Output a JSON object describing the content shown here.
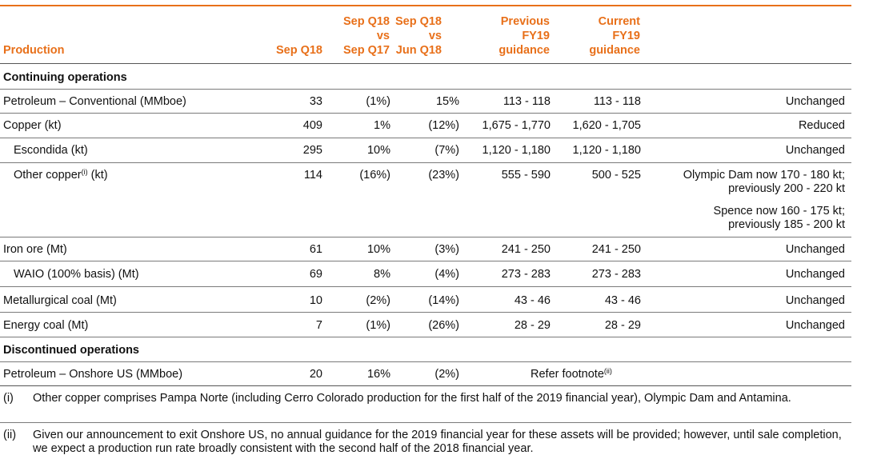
{
  "colors": {
    "accent": "#e8701a",
    "text": "#111111"
  },
  "header": {
    "production": "Production",
    "sep_q18": "Sep Q18",
    "vs_sep_q17": [
      "Sep Q18",
      "vs",
      "Sep Q17"
    ],
    "vs_jun_q18": [
      "Sep Q18",
      "vs",
      "Jun Q18"
    ],
    "previous_guidance": [
      "Previous",
      "FY19",
      "guidance"
    ],
    "current_guidance": [
      "Current",
      "FY19",
      "guidance"
    ]
  },
  "sections": {
    "continuing": "Continuing operations",
    "discontinued": "Discontinued operations"
  },
  "rows": [
    {
      "name": "Petroleum – Conventional (MMboe)",
      "sep_q18": "33",
      "vs_q17": "(1%)",
      "vs_q18": "15%",
      "prev": "113 - 118",
      "curr": "113 - 118",
      "note": "Unchanged"
    },
    {
      "name": "Copper (kt)",
      "sep_q18": "409",
      "vs_q17": "1%",
      "vs_q18": "(12%)",
      "prev": "1,675 - 1,770",
      "curr": "1,620 - 1,705",
      "note": "Reduced"
    },
    {
      "name": "Escondida (kt)",
      "sep_q18": "295",
      "vs_q17": "10%",
      "vs_q18": "(7%)",
      "prev": "1,120 - 1,180",
      "curr": "1,120 - 1,180",
      "note": "Unchanged"
    },
    {
      "name": "Other copper",
      "name_sup": "(i)",
      "name_suffix": " (kt)",
      "sep_q18": "114",
      "vs_q17": "(16%)",
      "vs_q18": "(23%)",
      "prev": "555 - 590",
      "curr": "500 - 525",
      "note_lines": [
        "Olympic Dam now 170 - 180 kt;",
        "previously 200 - 220 kt",
        "Spence now 160 - 175 kt;",
        "previously 185 - 200 kt"
      ]
    },
    {
      "name": "Iron ore (Mt)",
      "sep_q18": "61",
      "vs_q17": "10%",
      "vs_q18": "(3%)",
      "prev": "241 - 250",
      "curr": "241 - 250",
      "note": "Unchanged"
    },
    {
      "name": "WAIO (100% basis) (Mt)",
      "sep_q18": "69",
      "vs_q17": "8%",
      "vs_q18": "(4%)",
      "prev": "273 - 283",
      "curr": "273 - 283",
      "note": "Unchanged"
    },
    {
      "name": "Metallurgical coal (Mt)",
      "sep_q18": "10",
      "vs_q17": "(2%)",
      "vs_q18": "(14%)",
      "prev": "43 - 46",
      "curr": "43 - 46",
      "note": "Unchanged"
    },
    {
      "name": "Energy coal (Mt)",
      "sep_q18": "7",
      "vs_q17": "(1%)",
      "vs_q18": "(26%)",
      "prev": "28 - 29",
      "curr": "28 - 29",
      "note": "Unchanged"
    },
    {
      "name": "Petroleum – Onshore US (MMboe)",
      "sep_q18": "20",
      "vs_q17": "16%",
      "vs_q18": "(2%)",
      "refer": "Refer footnote",
      "refer_sup": "(ii)"
    }
  ],
  "footnotes": [
    {
      "mark": "(i)",
      "text": "Other copper comprises Pampa Norte (including Cerro Colorado production for the first half of the 2019 financial year), Olympic Dam and Antamina."
    },
    {
      "mark": "(ii)",
      "text": "Given our announcement to exit Onshore US, no annual guidance for the 2019 financial year for these assets will be provided; however, until sale completion, we expect a production run rate broadly consistent with the second half of the 2018 financial year."
    }
  ]
}
